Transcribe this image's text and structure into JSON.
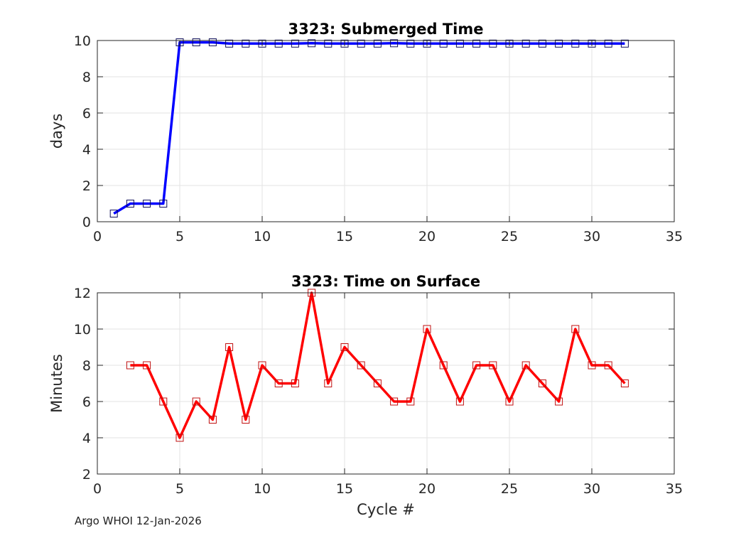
{
  "footer": "Argo WHOI 12-Jan-2026",
  "chart_data": [
    {
      "type": "line",
      "title": "3323: Submerged Time",
      "xlabel": "",
      "ylabel": "days",
      "xlim": [
        0,
        35
      ],
      "ylim": [
        0,
        10
      ],
      "xticks": [
        "0",
        "5",
        "10",
        "15",
        "20",
        "25",
        "30",
        "35"
      ],
      "yticks": [
        "0",
        "2",
        "4",
        "6",
        "8",
        "10"
      ],
      "grid": true,
      "color": "#0000ff",
      "marker_color": "#10105a",
      "x": [
        1,
        2,
        3,
        4,
        5,
        6,
        7,
        8,
        9,
        10,
        11,
        12,
        13,
        14,
        15,
        16,
        17,
        18,
        19,
        20,
        21,
        22,
        23,
        24,
        25,
        26,
        27,
        28,
        29,
        30,
        31,
        32
      ],
      "y": [
        0.45,
        1.0,
        1.0,
        1.0,
        9.9,
        9.9,
        9.9,
        9.83,
        9.83,
        9.83,
        9.83,
        9.83,
        9.85,
        9.83,
        9.83,
        9.83,
        9.83,
        9.85,
        9.83,
        9.83,
        9.83,
        9.83,
        9.83,
        9.83,
        9.83,
        9.83,
        9.83,
        9.83,
        9.83,
        9.83,
        9.83,
        9.83
      ]
    },
    {
      "type": "line",
      "title": "3323: Time on Surface",
      "xlabel": "Cycle #",
      "ylabel": "Minutes",
      "xlim": [
        0,
        35
      ],
      "ylim": [
        2,
        12
      ],
      "xticks": [
        "0",
        "5",
        "10",
        "15",
        "20",
        "25",
        "30",
        "35"
      ],
      "yticks": [
        "2",
        "4",
        "6",
        "8",
        "10",
        "12"
      ],
      "grid": true,
      "color": "#ff0000",
      "marker_color": "#c01010",
      "x": [
        2,
        3,
        4,
        5,
        6,
        7,
        8,
        9,
        10,
        11,
        12,
        13,
        14,
        15,
        16,
        17,
        18,
        19,
        20,
        21,
        22,
        23,
        24,
        25,
        26,
        27,
        28,
        29,
        30,
        31,
        32
      ],
      "y": [
        8,
        8,
        6,
        4,
        6,
        5,
        9,
        5,
        8,
        7,
        7,
        12,
        7,
        9,
        8,
        7,
        6,
        6,
        10,
        8,
        6,
        8,
        8,
        6,
        8,
        7,
        6,
        10,
        8,
        8,
        7
      ]
    }
  ]
}
